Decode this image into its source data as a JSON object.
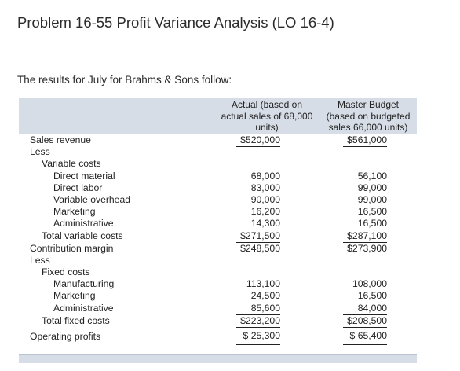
{
  "title": "Problem 16-55 Profit Variance Analysis (LO 16-4)",
  "intro": "The results for July for Brahms & Sons follow:",
  "headers": {
    "actual": [
      "Actual (based on",
      "actual sales of 68,000",
      "units)"
    ],
    "budget": [
      "Master Budget",
      "(based on budgeted",
      "sales 66,000 units)"
    ]
  },
  "rows": [
    {
      "label": "Sales revenue",
      "actual": "$520,000",
      "budget": "$561,000"
    },
    {
      "label": "Less",
      "actual": "",
      "budget": ""
    },
    {
      "label": "Variable costs",
      "actual": "",
      "budget": ""
    },
    {
      "label": "Direct material",
      "actual": "68,000",
      "budget": "56,100"
    },
    {
      "label": "Direct labor",
      "actual": "83,000",
      "budget": "99,000"
    },
    {
      "label": "Variable overhead",
      "actual": "90,000",
      "budget": "99,000"
    },
    {
      "label": "Marketing",
      "actual": "16,200",
      "budget": "16,500"
    },
    {
      "label": "Administrative",
      "actual": "14,300",
      "budget": "16,500"
    },
    {
      "label": "Total variable costs",
      "actual": "$271,500",
      "budget": "$287,100"
    },
    {
      "label": "Contribution margin",
      "actual": "$248,500",
      "budget": "$273,900"
    },
    {
      "label": "Less",
      "actual": "",
      "budget": ""
    },
    {
      "label": "Fixed costs",
      "actual": "",
      "budget": ""
    },
    {
      "label": "Manufacturing",
      "actual": "113,100",
      "budget": "108,000"
    },
    {
      "label": "Marketing",
      "actual": "24,500",
      "budget": "16,500"
    },
    {
      "label": "Administrative",
      "actual": "85,600",
      "budget": "84,000"
    },
    {
      "label": "Total fixed costs",
      "actual": "$223,200",
      "budget": "$208,500"
    },
    {
      "label": "Operating profits",
      "actual": "$ 25,300",
      "budget": "$ 65,400"
    }
  ]
}
